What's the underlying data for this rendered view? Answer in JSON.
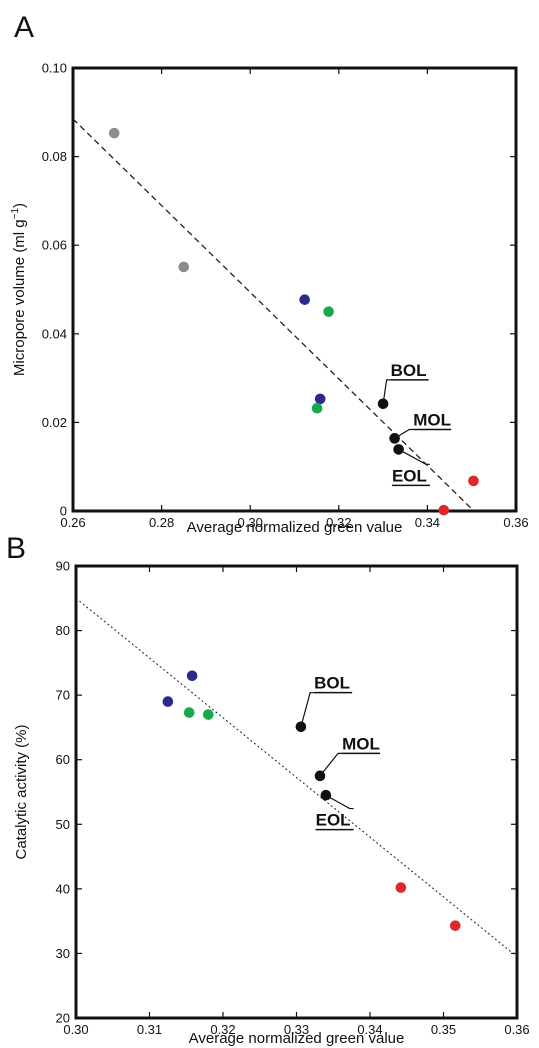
{
  "chart_data": [
    {
      "type": "scatter",
      "panel_label": "A",
      "xlabel": "Average normalized green value",
      "ylabel_main": "Micropore volume (ml g",
      "ylabel_sup": "−1",
      "ylabel_end": ")",
      "xlim": [
        0.26,
        0.36
      ],
      "ylim": [
        0,
        0.1
      ],
      "xticks": [
        0.26,
        0.28,
        0.3,
        0.32,
        0.34,
        0.36
      ],
      "xtick_labels": [
        "0.26",
        "0.28",
        "0.30",
        "0.32",
        "0.34",
        "0.36"
      ],
      "yticks": [
        0,
        0.02,
        0.04,
        0.06,
        0.08,
        0.1
      ],
      "ytick_labels": [
        "0",
        "0.02",
        "0.04",
        "0.06",
        "0.08",
        "0.10"
      ],
      "grid": false,
      "trendline": {
        "x": [
          0.26,
          0.3505
        ],
        "y": [
          0.0885,
          0.0
        ],
        "style": "dashed"
      },
      "points": [
        {
          "x": 0.2693,
          "y": 0.0853,
          "color": "#8c8c8c"
        },
        {
          "x": 0.285,
          "y": 0.0551,
          "color": "#8c8c8c"
        },
        {
          "x": 0.3123,
          "y": 0.0477,
          "color": "#2a2a8c"
        },
        {
          "x": 0.3158,
          "y": 0.0253,
          "color": "#2a2a8c"
        },
        {
          "x": 0.3177,
          "y": 0.045,
          "color": "#18a84a"
        },
        {
          "x": 0.3151,
          "y": 0.0232,
          "color": "#18a84a"
        },
        {
          "x": 0.33,
          "y": 0.0242,
          "color": "#111111"
        },
        {
          "x": 0.3326,
          "y": 0.0164,
          "color": "#111111"
        },
        {
          "x": 0.3335,
          "y": 0.0139,
          "color": "#111111"
        },
        {
          "x": 0.3437,
          "y": 0.0002,
          "color": "#e02828"
        },
        {
          "x": 0.3504,
          "y": 0.0068,
          "color": "#e02828"
        }
      ],
      "annotations": [
        {
          "text": "BOL",
          "point": 6,
          "tx": 0.3317,
          "ty": 0.0305
        },
        {
          "text": "MOL",
          "point": 7,
          "tx": 0.3368,
          "ty": 0.0193
        },
        {
          "text": "EOL",
          "point": 8,
          "tx": 0.332,
          "ty": 0.0067
        }
      ]
    },
    {
      "type": "scatter",
      "panel_label": "B",
      "xlabel": "Average normalized green value",
      "ylabel": "Catalytic activity (%)",
      "xlim": [
        0.3,
        0.36
      ],
      "ylim": [
        20,
        90
      ],
      "xticks": [
        0.3,
        0.31,
        0.32,
        0.33,
        0.34,
        0.35,
        0.36
      ],
      "xtick_labels": [
        "0.30",
        "0.31",
        "0.32",
        "0.33",
        "0.34",
        "0.35",
        "0.36"
      ],
      "yticks": [
        20,
        30,
        40,
        50,
        60,
        70,
        80,
        90
      ],
      "ytick_labels": [
        "20",
        "30",
        "40",
        "50",
        "60",
        "70",
        "80",
        "90"
      ],
      "grid": false,
      "trendline": {
        "x": [
          0.3,
          0.36
        ],
        "y": [
          85.0,
          29.5
        ],
        "style": "dotted"
      },
      "points": [
        {
          "x": 0.3125,
          "y": 69.0,
          "color": "#2a2a8c"
        },
        {
          "x": 0.3158,
          "y": 73.0,
          "color": "#2a2a8c"
        },
        {
          "x": 0.3154,
          "y": 67.3,
          "color": "#18a84a"
        },
        {
          "x": 0.318,
          "y": 67.0,
          "color": "#18a84a"
        },
        {
          "x": 0.3306,
          "y": 65.1,
          "color": "#111111"
        },
        {
          "x": 0.3332,
          "y": 57.5,
          "color": "#111111"
        },
        {
          "x": 0.334,
          "y": 54.5,
          "color": "#111111"
        },
        {
          "x": 0.3442,
          "y": 40.2,
          "color": "#e02828"
        },
        {
          "x": 0.3516,
          "y": 34.3,
          "color": "#e02828"
        }
      ],
      "annotations": [
        {
          "text": "BOL",
          "point": 4,
          "tx": 0.3324,
          "ty": 71.0
        },
        {
          "text": "MOL",
          "point": 5,
          "tx": 0.3362,
          "ty": 61.6
        },
        {
          "text": "EOL",
          "point": 6,
          "tx": 0.3326,
          "ty": 49.8
        }
      ]
    }
  ]
}
